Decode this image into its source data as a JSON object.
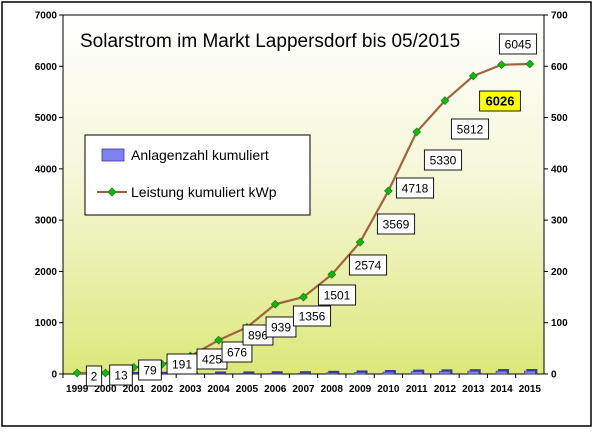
{
  "chart_data": {
    "type": "bar",
    "title": "Solarstrom im Markt Lappersdorf bis 05/2015",
    "categories": [
      "1999",
      "2000",
      "2001",
      "2002",
      "2003",
      "2004",
      "2005",
      "2006",
      "2007",
      "2008",
      "2009",
      "2010",
      "2011",
      "2012",
      "2013",
      "2014",
      "2015"
    ],
    "series": [
      {
        "name": "Anlagenzahl kumuliert",
        "type": "bar",
        "axis": "left",
        "values": [
          0,
          0,
          2,
          4,
          6,
          9,
          11.5,
          14.5,
          16,
          23,
          30.5,
          38.5,
          46.5,
          51,
          55,
          57.5,
          58
        ]
      },
      {
        "name": "Leistung kumuliert kWp",
        "type": "line",
        "axis": "right",
        "values": [
          2,
          2,
          13,
          19,
          35,
          66,
          91,
          136,
          150,
          194,
          257,
          357,
          472,
          533,
          581,
          603,
          604.5
        ]
      }
    ],
    "data_labels": [
      {
        "category": "2000",
        "text": "2"
      },
      {
        "category": "2001",
        "text": "13"
      },
      {
        "category": "2002",
        "text": "79"
      },
      {
        "category": "2003",
        "text": "191"
      },
      {
        "category": "2004",
        "text": "425"
      },
      {
        "category": "2005",
        "text": "676"
      },
      {
        "category": "2006",
        "text": "896"
      },
      {
        "category": "2006",
        "text": "939"
      },
      {
        "category": "2007",
        "text": "1356"
      },
      {
        "category": "2008",
        "text": "1501"
      },
      {
        "category": "2009",
        "text": "2574"
      },
      {
        "category": "2010",
        "text": "3569"
      },
      {
        "category": "2011",
        "text": "4718"
      },
      {
        "category": "2012",
        "text": "5330"
      },
      {
        "category": "2013",
        "text": "5812"
      },
      {
        "category": "2014",
        "text": "6026",
        "highlight": true
      },
      {
        "category": "2014",
        "text": "6045"
      }
    ],
    "y_left": {
      "ylim": [
        0,
        7000
      ],
      "ticks": [
        "0",
        "1000",
        "2000",
        "3000",
        "4000",
        "5000",
        "6000",
        "7000"
      ]
    },
    "y_right": {
      "ylim": [
        0,
        700
      ],
      "ticks": [
        "0",
        "100",
        "200",
        "300",
        "400",
        "500",
        "600",
        "700"
      ]
    },
    "legend": {
      "placement": "left-center"
    },
    "grid": false,
    "colors": {
      "bar_fill": "#8080ee",
      "bar_shade": "#3a3a9a",
      "line": "#a0643c",
      "marker": "#00c000",
      "label_box": "#ffffff",
      "label_highlight": "#ffff00",
      "plot_bg_top": "#ffffff",
      "plot_bg_bottom": "#dce87a"
    }
  }
}
